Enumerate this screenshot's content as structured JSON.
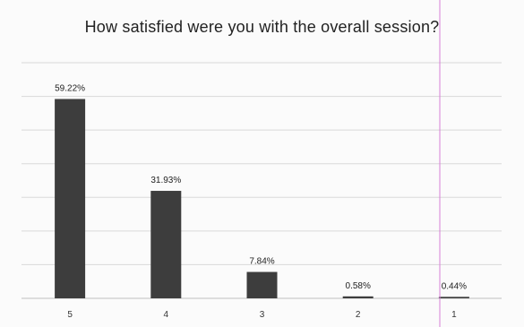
{
  "chart_data": {
    "type": "bar",
    "title": "How satisfied were you with the overall session?",
    "categories": [
      "5",
      "4",
      "3",
      "2",
      "1"
    ],
    "values": [
      59.22,
      31.93,
      7.84,
      0.58,
      0.44
    ],
    "data_labels": [
      "59.22%",
      "31.93%",
      "7.84%",
      "0.58%",
      "0.44%"
    ],
    "ylim": [
      0,
      70
    ],
    "grid": true,
    "legend": "none",
    "colors": {
      "bar": "#3d3d3d",
      "grid": "#d9d9d9",
      "scan_line": "#d77fd7"
    }
  }
}
